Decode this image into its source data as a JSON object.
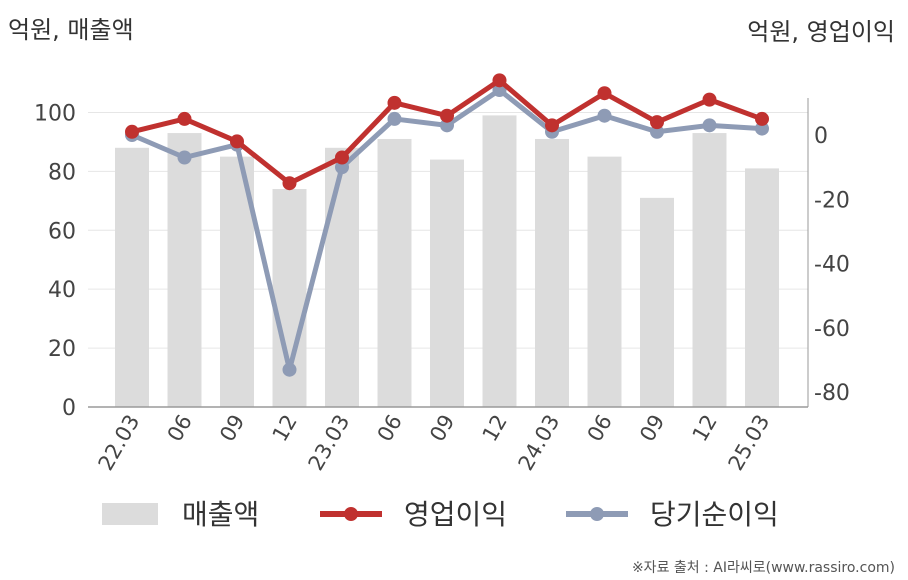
{
  "chart_data": {
    "type": "bar",
    "categories": [
      "22.03",
      "06",
      "09",
      "12",
      "23.03",
      "06",
      "09",
      "12",
      "24.03",
      "06",
      "09",
      "12",
      "25.03"
    ],
    "left_axis_unit": "억원, 매출액",
    "right_axis_unit": "억원, 영업이익",
    "left_ticks": [
      "0",
      "20",
      "40",
      "60",
      "80",
      "100"
    ],
    "right_ticks": [
      "0",
      "-20",
      "-40",
      "-60",
      "-80"
    ],
    "left_ylim": [
      0,
      110
    ],
    "right_ylim": [
      -84,
      0
    ],
    "series": [
      {
        "name": "매출액",
        "kind": "bar",
        "axis": "left",
        "color": "#dcdcdc",
        "values": [
          88,
          93,
          85,
          74,
          88,
          91,
          84,
          99,
          91,
          85,
          71,
          93,
          81
        ]
      },
      {
        "name": "영업이익",
        "kind": "line",
        "axis": "right",
        "color": "#c0312f",
        "values": [
          1,
          5,
          -2,
          -15,
          -7,
          10,
          6,
          17,
          3,
          13,
          4,
          11,
          5
        ]
      },
      {
        "name": "당기순이익",
        "kind": "line",
        "axis": "right",
        "color": "#8e9bb5",
        "values": [
          0,
          -7,
          -3,
          -73,
          -10,
          5,
          3,
          14,
          1,
          6,
          1,
          3,
          2
        ]
      }
    ],
    "grid": true,
    "legend_position": "bottom"
  },
  "source_note": "※자료 출처 : AI라씨로(www.rassiro.com)"
}
